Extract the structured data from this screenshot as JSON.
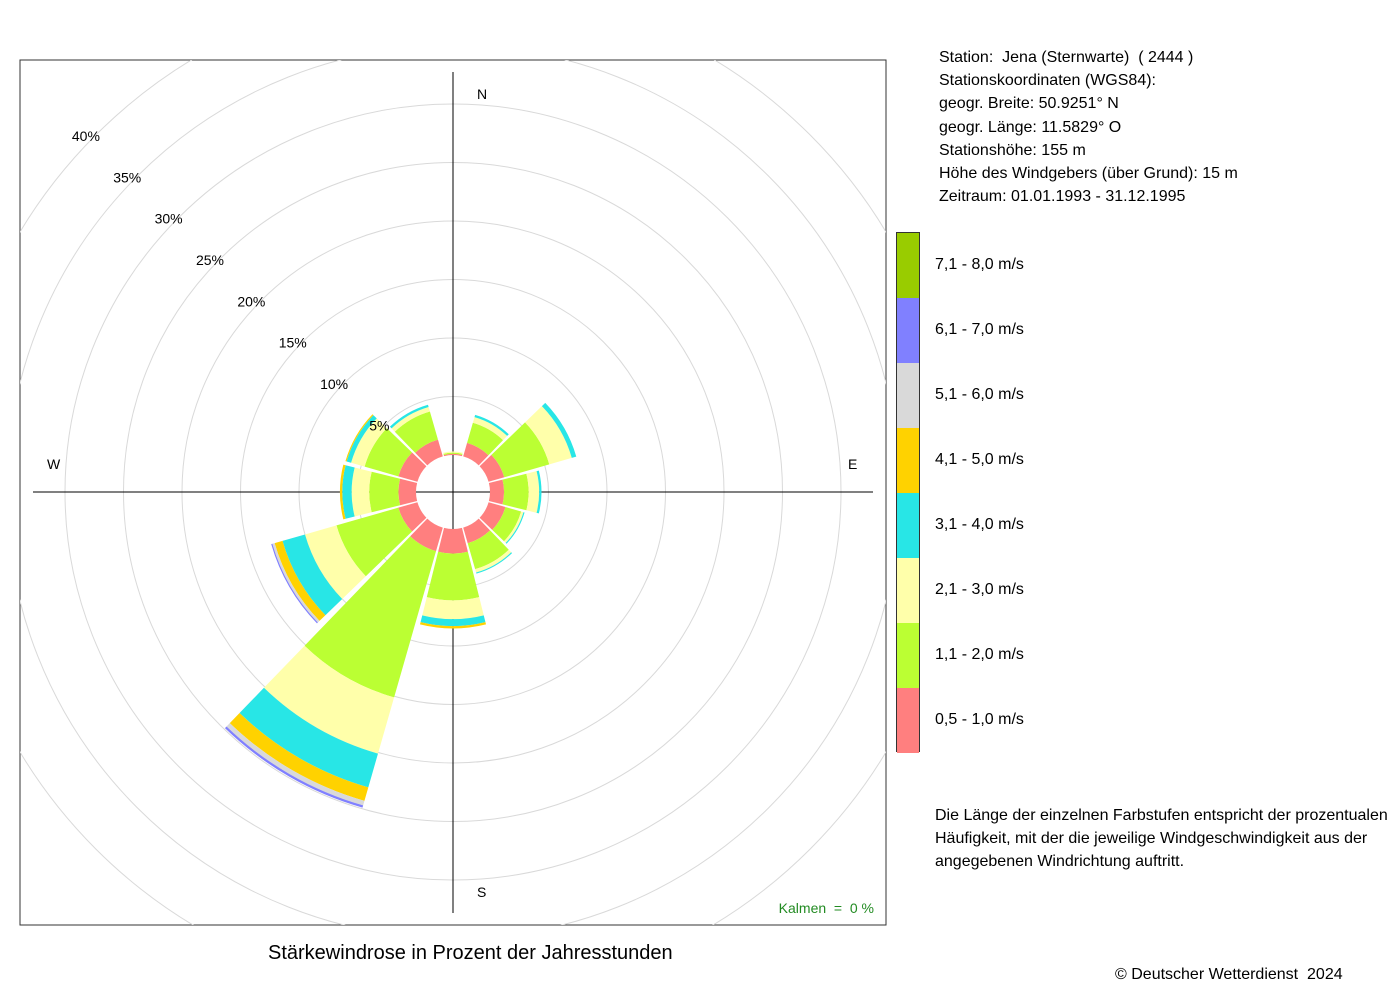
{
  "station_info": {
    "station": "Station:  Jena (Sternwarte)  ( 2444 )",
    "coords_header": "Stationskoordinaten (WGS84):",
    "lat": "geogr. Breite: 50.9251° N",
    "lon": "geogr. Länge: 11.5829° O",
    "elevation": "Stationshöhe: 155 m",
    "sensor_height": "Höhe des Windgebers (über Grund): 15 m",
    "period": "Zeitraum: 01.01.1993 - 31.12.1995"
  },
  "note_lines": [
    "Die Länge der einzelnen Farbstufen entspricht der prozentualen",
    "Häufigkeit, mit der die jeweilige Windgeschwindigkeit aus der",
    "angegebenen Windrichtung auftritt."
  ],
  "copyright": "© Deutscher Wetterdienst  2024",
  "chart_data": {
    "type": "windrose",
    "title": "Stärkewindrose in Prozent der Jahresstunden",
    "calm_label": "Kalmen  =  0 %",
    "calm_color": "#228b22",
    "direction_labels": {
      "N": "N",
      "E": "E",
      "S": "S",
      "W": "W"
    },
    "radial_ticks": [
      5,
      10,
      15,
      20,
      25,
      30,
      35,
      40
    ],
    "radial_tick_labels": [
      "5%",
      "10%",
      "15%",
      "20%",
      "25%",
      "30%",
      "35%",
      "40%"
    ],
    "r_max": 40,
    "grid": true,
    "legend_position": "right",
    "speed_classes": [
      {
        "label": "0,5 - 1,0 m/s",
        "color": "#ff7f7f"
      },
      {
        "label": "1,1 - 2,0 m/s",
        "color": "#bbff33"
      },
      {
        "label": "2,1 - 3,0 m/s",
        "color": "#ffffaa"
      },
      {
        "label": "3,1 - 4,0 m/s",
        "color": "#28e6e6"
      },
      {
        "label": "4,1 - 5,0 m/s",
        "color": "#ffd200"
      },
      {
        "label": "5,1 - 6,0 m/s",
        "color": "#d9d9d9"
      },
      {
        "label": "6,1 - 7,0 m/s",
        "color": "#8080ff"
      },
      {
        "label": "7,1 - 8,0 m/s",
        "color": "#99cc00"
      }
    ],
    "sectors": [
      {
        "dir": 0,
        "values": [
          0.1,
          0.1,
          0.1,
          0,
          0,
          0,
          0,
          0
        ]
      },
      {
        "dir": 30,
        "values": [
          1.2,
          1.8,
          0.5,
          0.2,
          0,
          0,
          0,
          0
        ]
      },
      {
        "dir": 60,
        "values": [
          1.4,
          4.0,
          2.0,
          0.4,
          0,
          0,
          0,
          0
        ]
      },
      {
        "dir": 90,
        "values": [
          1.2,
          2.1,
          0.9,
          0.2,
          0,
          0,
          0,
          0
        ]
      },
      {
        "dir": 120,
        "values": [
          1.5,
          1.4,
          0.2,
          0.1,
          0,
          0,
          0,
          0
        ]
      },
      {
        "dir": 150,
        "values": [
          1.4,
          2.3,
          0.3,
          0.1,
          0,
          0,
          0,
          0
        ]
      },
      {
        "dir": 180,
        "values": [
          2.1,
          4.0,
          1.6,
          0.6,
          0.2,
          0,
          0,
          0
        ]
      },
      {
        "dir": 210,
        "values": [
          2.1,
          13.0,
          5.0,
          3.0,
          1.2,
          0.4,
          0.2,
          0
        ]
      },
      {
        "dir": 240,
        "values": [
          1.7,
          5.5,
          2.8,
          2.0,
          0.7,
          0.2,
          0.1,
          0
        ]
      },
      {
        "dir": 270,
        "values": [
          1.5,
          2.5,
          1.5,
          0.8,
          0.2,
          0,
          0,
          0
        ]
      },
      {
        "dir": 300,
        "values": [
          1.7,
          3.0,
          1.2,
          0.4,
          0.1,
          0,
          0,
          0
        ]
      },
      {
        "dir": 330,
        "values": [
          1.5,
          2.5,
          0.4,
          0.2,
          0,
          0,
          0,
          0
        ]
      }
    ]
  }
}
